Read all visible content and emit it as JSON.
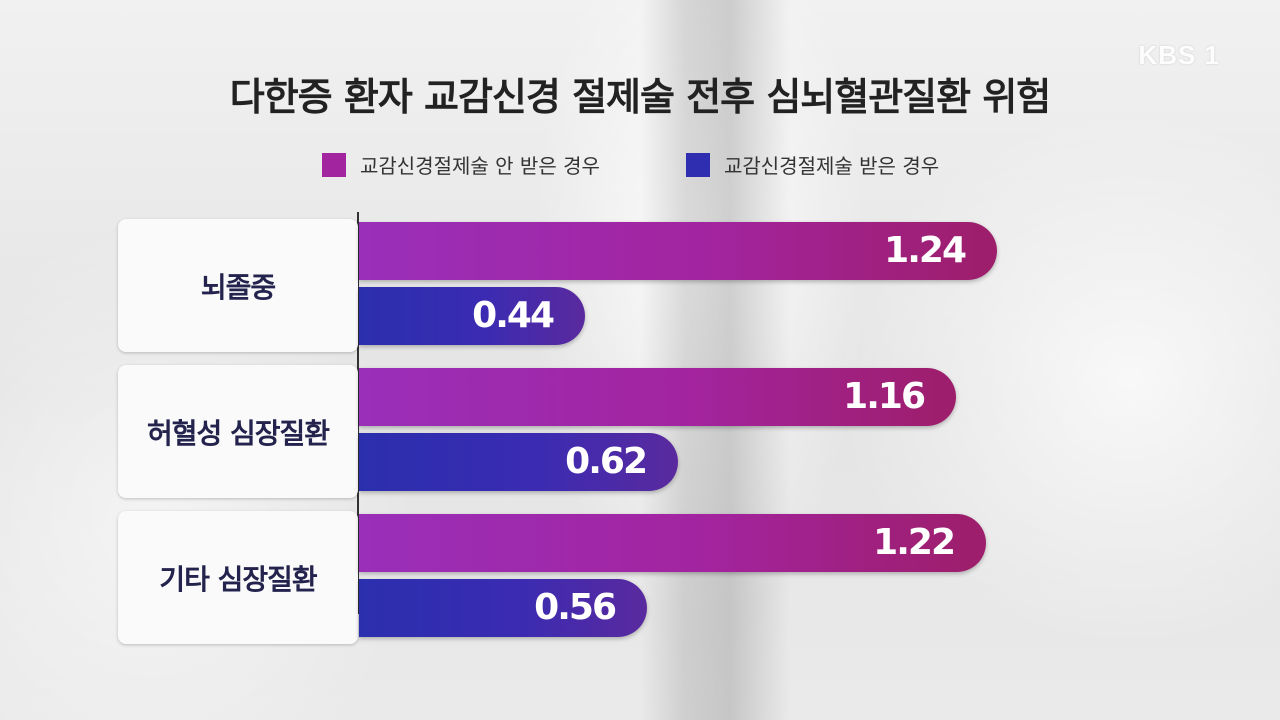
{
  "broadcaster": {
    "logo_text": "KBS 1"
  },
  "chart_data": {
    "type": "bar",
    "orientation": "horizontal",
    "title": "다한증 환자 교감신경 절제술 전후 심뇌혈관질환 위험",
    "categories": [
      "뇌졸중",
      "허혈성 심장질환",
      "기타 심장질환"
    ],
    "series": [
      {
        "name": "교감신경절제술 안 받은 경우",
        "color": "#a3249f",
        "values": [
          1.24,
          1.16,
          1.22
        ]
      },
      {
        "name": "교감신경절제술 받은 경우",
        "color": "#2f2db0",
        "values": [
          0.44,
          0.62,
          0.56
        ]
      }
    ],
    "xlim": [
      0,
      1.4
    ],
    "grid": false,
    "legend_position": "top-center"
  }
}
